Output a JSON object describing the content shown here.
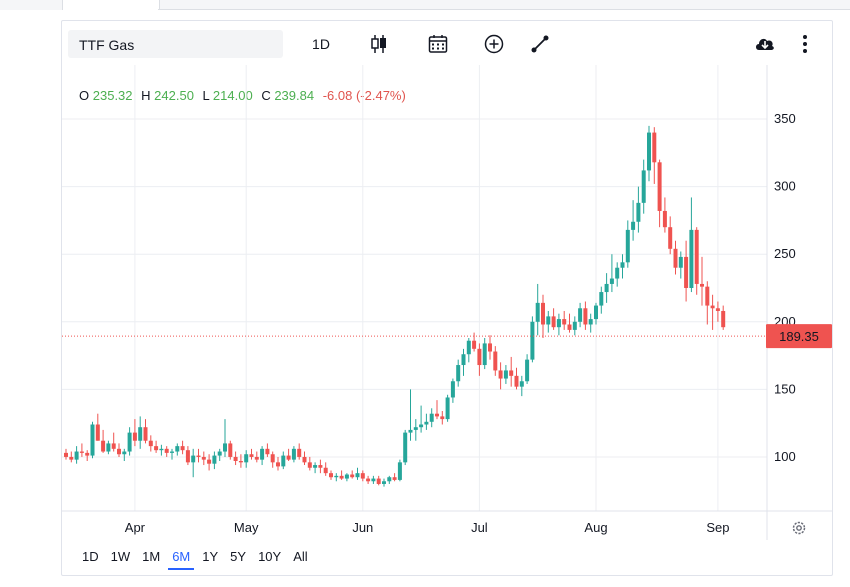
{
  "toolbar": {
    "symbol": "TTF Gas",
    "interval": "1D",
    "icons": [
      "candlestick-icon",
      "calendar-icon",
      "add-circle-icon",
      "drawing-line-icon",
      "download-cloud-icon",
      "more-vertical-icon"
    ]
  },
  "legend": {
    "o_label": "O",
    "o_value": "235.32",
    "h_label": "H",
    "h_value": "242.50",
    "l_label": "L",
    "l_value": "214.00",
    "c_label": "C",
    "c_value": "239.84",
    "change": "-6.08 (-2.47%)"
  },
  "price_label": "189.35",
  "ranges": [
    "1D",
    "1W",
    "1M",
    "6M",
    "1Y",
    "5Y",
    "10Y",
    "All"
  ],
  "active_range": "6M",
  "colors": {
    "up": "#26a69a",
    "down": "#ef5350",
    "price_line": "#ef5350",
    "active": "#2962ff"
  },
  "chart_data": {
    "type": "candlestick",
    "title": "",
    "xlabel": "",
    "ylabel": "",
    "ylim": [
      60,
      390
    ],
    "y_ticks": [
      100,
      150,
      200,
      250,
      300,
      350
    ],
    "x_ticks": [
      {
        "label": "Apr",
        "index": 13
      },
      {
        "label": "May",
        "index": 34
      },
      {
        "label": "Jun",
        "index": 56
      },
      {
        "label": "Jul",
        "index": 78
      },
      {
        "label": "Aug",
        "index": 100
      },
      {
        "label": "Sep",
        "index": 123
      }
    ],
    "last_price": 189.35,
    "grid": true,
    "candles": [
      [
        103,
        106,
        98,
        100
      ],
      [
        100,
        104,
        96,
        98
      ],
      [
        98,
        108,
        95,
        104
      ],
      [
        104,
        110,
        100,
        103
      ],
      [
        103,
        105,
        97,
        101
      ],
      [
        101,
        126,
        99,
        124
      ],
      [
        124,
        132,
        112,
        112
      ],
      [
        112,
        120,
        103,
        104
      ],
      [
        104,
        112,
        102,
        110
      ],
      [
        110,
        118,
        104,
        106
      ],
      [
        106,
        110,
        100,
        102
      ],
      [
        102,
        106,
        97,
        104
      ],
      [
        104,
        122,
        101,
        118
      ],
      [
        118,
        128,
        108,
        112
      ],
      [
        112,
        130,
        106,
        122
      ],
      [
        122,
        128,
        110,
        112
      ],
      [
        112,
        116,
        104,
        108
      ],
      [
        108,
        112,
        103,
        105
      ],
      [
        105,
        109,
        101,
        106
      ],
      [
        106,
        108,
        100,
        103
      ],
      [
        103,
        106,
        98,
        104
      ],
      [
        104,
        110,
        101,
        108
      ],
      [
        108,
        112,
        102,
        105
      ],
      [
        105,
        108,
        94,
        96
      ],
      [
        96,
        106,
        85,
        101
      ],
      [
        101,
        106,
        96,
        100
      ],
      [
        100,
        104,
        94,
        98
      ],
      [
        98,
        102,
        90,
        95
      ],
      [
        95,
        104,
        91,
        101
      ],
      [
        101,
        106,
        97,
        104
      ],
      [
        104,
        128,
        100,
        110
      ],
      [
        110,
        112,
        98,
        100
      ],
      [
        100,
        104,
        94,
        97
      ],
      [
        97,
        102,
        92,
        96
      ],
      [
        96,
        105,
        92,
        102
      ],
      [
        102,
        106,
        98,
        100
      ],
      [
        100,
        104,
        96,
        98
      ],
      [
        98,
        108,
        94,
        106
      ],
      [
        106,
        110,
        100,
        102
      ],
      [
        102,
        104,
        92,
        96
      ],
      [
        96,
        100,
        90,
        93
      ],
      [
        93,
        104,
        91,
        101
      ],
      [
        101,
        106,
        97,
        98
      ],
      [
        98,
        108,
        96,
        106
      ],
      [
        106,
        110,
        98,
        100
      ],
      [
        100,
        104,
        94,
        96
      ],
      [
        96,
        100,
        90,
        92
      ],
      [
        92,
        96,
        88,
        94
      ],
      [
        94,
        98,
        88,
        92
      ],
      [
        92,
        96,
        86,
        88
      ],
      [
        88,
        90,
        83,
        85
      ],
      [
        85,
        88,
        82,
        86
      ],
      [
        86,
        90,
        83,
        84
      ],
      [
        84,
        88,
        82,
        87
      ],
      [
        87,
        90,
        84,
        85
      ],
      [
        85,
        92,
        83,
        88
      ],
      [
        88,
        90,
        82,
        84
      ],
      [
        84,
        86,
        80,
        82
      ],
      [
        82,
        86,
        80,
        84
      ],
      [
        84,
        86,
        79,
        80
      ],
      [
        80,
        84,
        78,
        82
      ],
      [
        82,
        86,
        80,
        85
      ],
      [
        85,
        88,
        82,
        83
      ],
      [
        83,
        98,
        82,
        96
      ],
      [
        96,
        120,
        94,
        118
      ],
      [
        118,
        150,
        112,
        120
      ],
      [
        120,
        128,
        112,
        122
      ],
      [
        122,
        138,
        118,
        124
      ],
      [
        124,
        132,
        120,
        126
      ],
      [
        126,
        136,
        122,
        132
      ],
      [
        132,
        142,
        128,
        130
      ],
      [
        130,
        134,
        124,
        128
      ],
      [
        128,
        146,
        126,
        144
      ],
      [
        144,
        158,
        140,
        156
      ],
      [
        156,
        172,
        152,
        168
      ],
      [
        168,
        180,
        160,
        176
      ],
      [
        176,
        188,
        170,
        186
      ],
      [
        186,
        192,
        178,
        180
      ],
      [
        180,
        184,
        160,
        168
      ],
      [
        168,
        188,
        165,
        184
      ],
      [
        184,
        190,
        172,
        178
      ],
      [
        178,
        182,
        160,
        164
      ],
      [
        164,
        170,
        150,
        158
      ],
      [
        158,
        168,
        154,
        164
      ],
      [
        164,
        174,
        152,
        160
      ],
      [
        160,
        166,
        150,
        152
      ],
      [
        152,
        160,
        145,
        156
      ],
      [
        156,
        176,
        154,
        172
      ],
      [
        172,
        204,
        170,
        200
      ],
      [
        200,
        228,
        190,
        214
      ],
      [
        214,
        220,
        188,
        198
      ],
      [
        198,
        208,
        192,
        204
      ],
      [
        204,
        210,
        194,
        196
      ],
      [
        196,
        206,
        190,
        202
      ],
      [
        202,
        208,
        194,
        198
      ],
      [
        198,
        206,
        192,
        194
      ],
      [
        194,
        204,
        190,
        200
      ],
      [
        200,
        214,
        196,
        210
      ],
      [
        210,
        215,
        194,
        198
      ],
      [
        198,
        206,
        192,
        202
      ],
      [
        202,
        214,
        198,
        212
      ],
      [
        212,
        226,
        206,
        222
      ],
      [
        222,
        236,
        214,
        228
      ],
      [
        228,
        250,
        222,
        232
      ],
      [
        232,
        244,
        226,
        240
      ],
      [
        240,
        250,
        232,
        244
      ],
      [
        244,
        275,
        240,
        268
      ],
      [
        268,
        290,
        260,
        274
      ],
      [
        274,
        300,
        266,
        288
      ],
      [
        288,
        320,
        280,
        312
      ],
      [
        312,
        345,
        304,
        340
      ],
      [
        340,
        344,
        302,
        318
      ],
      [
        318,
        320,
        270,
        282
      ],
      [
        282,
        292,
        266,
        270
      ],
      [
        270,
        278,
        250,
        254
      ],
      [
        254,
        260,
        235,
        240
      ],
      [
        240,
        252,
        232,
        248
      ],
      [
        248,
        260,
        215,
        225
      ],
      [
        225,
        292,
        222,
        268
      ],
      [
        268,
        270,
        220,
        228
      ],
      [
        228,
        248,
        212,
        226
      ],
      [
        226,
        230,
        198,
        212
      ],
      [
        212,
        220,
        194,
        210
      ],
      [
        210,
        215,
        200,
        208
      ],
      [
        208,
        212,
        194,
        196
      ]
    ]
  }
}
